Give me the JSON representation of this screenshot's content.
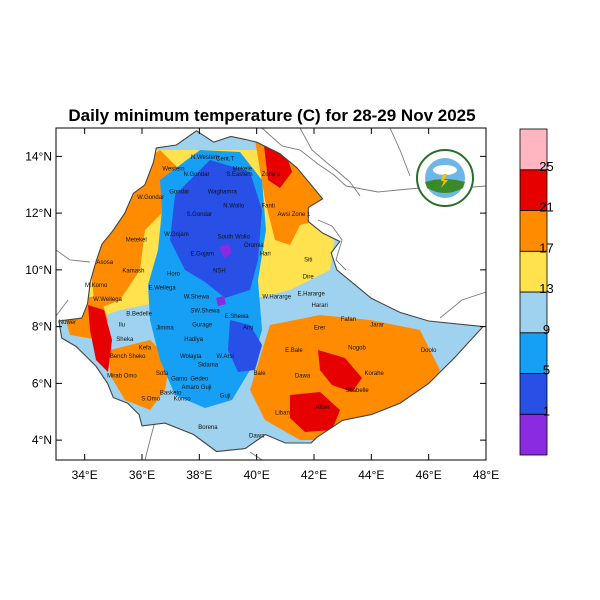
{
  "title": "Daily minimum temperature (C) for 28-29 Nov 2025",
  "map": {
    "lon_range": [
      33,
      48
    ],
    "lat_range": [
      3.3,
      15.0
    ],
    "x_ticks": [
      {
        "v": 34,
        "label": "34°E"
      },
      {
        "v": 36,
        "label": "36°E"
      },
      {
        "v": 38,
        "label": "38°E"
      },
      {
        "v": 40,
        "label": "40°E"
      },
      {
        "v": 42,
        "label": "42°E"
      },
      {
        "v": 44,
        "label": "44°E"
      },
      {
        "v": 46,
        "label": "46°E"
      },
      {
        "v": 48,
        "label": "48°E"
      }
    ],
    "y_ticks": [
      {
        "v": 4,
        "label": "4°N"
      },
      {
        "v": 6,
        "label": "6°N"
      },
      {
        "v": 8,
        "label": "8°N"
      },
      {
        "v": 10,
        "label": "10°N"
      },
      {
        "v": 12,
        "label": "12°N"
      },
      {
        "v": 14,
        "label": "14°N"
      }
    ]
  },
  "colorbar": {
    "colors": [
      "#8a2be2",
      "#2850e6",
      "#16a0f5",
      "#9ed2ee",
      "#ffe24d",
      "#ff8c00",
      "#e60000",
      "#ffb6c1"
    ],
    "labels": [
      "1",
      "5",
      "9",
      "13",
      "17",
      "21",
      "25"
    ]
  },
  "logo": {
    "colors": {
      "ring": "#2a6e2a",
      "sky": "#6fb6e8",
      "cloud": "#ffffff",
      "ground": "#3a8a2a"
    }
  },
  "regions": [
    {
      "name": "N.Western",
      "lon": 38.2,
      "lat": 13.9
    },
    {
      "name": "Cent.T",
      "lon": 38.9,
      "lat": 13.85
    },
    {
      "name": "Mekele",
      "lon": 39.5,
      "lat": 13.5
    },
    {
      "name": "Western",
      "lon": 37.1,
      "lat": 13.5
    },
    {
      "name": "N.Gondar",
      "lon": 37.9,
      "lat": 13.3
    },
    {
      "name": "S.Eastern",
      "lon": 39.4,
      "lat": 13.3
    },
    {
      "name": "Zone 2",
      "lon": 40.5,
      "lat": 13.3
    },
    {
      "name": "Gondar",
      "lon": 37.3,
      "lat": 12.7
    },
    {
      "name": "Waghamra",
      "lon": 38.8,
      "lat": 12.7
    },
    {
      "name": "W.Gondar",
      "lon": 36.3,
      "lat": 12.5
    },
    {
      "name": "N.Wollo",
      "lon": 39.2,
      "lat": 12.2
    },
    {
      "name": "S.Gondar",
      "lon": 38.0,
      "lat": 11.9
    },
    {
      "name": "Fanti",
      "lon": 40.4,
      "lat": 12.2
    },
    {
      "name": "Awsi Zone 1",
      "lon": 41.3,
      "lat": 11.9
    },
    {
      "name": "W.Gojam",
      "lon": 37.2,
      "lat": 11.2
    },
    {
      "name": "Metekel",
      "lon": 35.8,
      "lat": 11.0
    },
    {
      "name": "South Wollo",
      "lon": 39.2,
      "lat": 11.1
    },
    {
      "name": "E.Gojam",
      "lon": 38.1,
      "lat": 10.5
    },
    {
      "name": "Oromia",
      "lon": 39.9,
      "lat": 10.8
    },
    {
      "name": "Hari",
      "lon": 40.3,
      "lat": 10.5
    },
    {
      "name": "Siti",
      "lon": 41.8,
      "lat": 10.3
    },
    {
      "name": "Asosa",
      "lon": 34.7,
      "lat": 10.2
    },
    {
      "name": "Kamash",
      "lon": 35.7,
      "lat": 9.9
    },
    {
      "name": "Horo",
      "lon": 37.1,
      "lat": 9.8
    },
    {
      "name": "NSH",
      "lon": 38.7,
      "lat": 9.9
    },
    {
      "name": "Dire",
      "lon": 41.8,
      "lat": 9.7
    },
    {
      "name": "M.Komo",
      "lon": 34.4,
      "lat": 9.4
    },
    {
      "name": "E.Wellega",
      "lon": 36.7,
      "lat": 9.3
    },
    {
      "name": "W.Shewa",
      "lon": 37.9,
      "lat": 9.0
    },
    {
      "name": "W.Hararge",
      "lon": 40.7,
      "lat": 9.0
    },
    {
      "name": "E.Hararge",
      "lon": 41.9,
      "lat": 9.1
    },
    {
      "name": "W.Wellega",
      "lon": 34.8,
      "lat": 8.9
    },
    {
      "name": "B.Bedelle",
      "lon": 35.9,
      "lat": 8.4
    },
    {
      "name": "SW.Shewa",
      "lon": 38.2,
      "lat": 8.5
    },
    {
      "name": "E.Shewa",
      "lon": 39.3,
      "lat": 8.3
    },
    {
      "name": "Harari",
      "lon": 42.2,
      "lat": 8.7
    },
    {
      "name": "Fafan",
      "lon": 43.2,
      "lat": 8.2
    },
    {
      "name": "Nuwer",
      "lon": 33.4,
      "lat": 8.1
    },
    {
      "name": "Ilu",
      "lon": 35.3,
      "lat": 8.0
    },
    {
      "name": "Jimma",
      "lon": 36.8,
      "lat": 7.9
    },
    {
      "name": "Gurage",
      "lon": 38.1,
      "lat": 8.0
    },
    {
      "name": "Arsi",
      "lon": 39.7,
      "lat": 7.9
    },
    {
      "name": "Erer",
      "lon": 42.2,
      "lat": 7.9
    },
    {
      "name": "Jarar",
      "lon": 44.2,
      "lat": 8.0
    },
    {
      "name": "Sheka",
      "lon": 35.4,
      "lat": 7.5
    },
    {
      "name": "Kefa",
      "lon": 36.1,
      "lat": 7.2
    },
    {
      "name": "Hadiya",
      "lon": 37.8,
      "lat": 7.5
    },
    {
      "name": "E.Bale",
      "lon": 41.3,
      "lat": 7.1
    },
    {
      "name": "Dawa",
      "lon": 41.6,
      "lat": 6.2
    },
    {
      "name": "Bench Sheko",
      "lon": 35.5,
      "lat": 6.9
    },
    {
      "name": "Wolayta",
      "lon": 37.7,
      "lat": 6.9
    },
    {
      "name": "W.Arsi",
      "lon": 38.9,
      "lat": 6.9
    },
    {
      "name": "Nogob",
      "lon": 43.5,
      "lat": 7.2
    },
    {
      "name": "Doolo",
      "lon": 46.0,
      "lat": 7.1
    },
    {
      "name": "Sidama",
      "lon": 38.3,
      "lat": 6.6
    },
    {
      "name": "Bale",
      "lon": 40.1,
      "lat": 6.3
    },
    {
      "name": "Korahe",
      "lon": 44.1,
      "lat": 6.3
    },
    {
      "name": "Mirab Omo",
      "lon": 35.3,
      "lat": 6.2
    },
    {
      "name": "Sofa",
      "lon": 36.7,
      "lat": 6.3
    },
    {
      "name": "Gamo",
      "lon": 37.3,
      "lat": 6.1
    },
    {
      "name": "Gedeo",
      "lon": 38.0,
      "lat": 6.1
    },
    {
      "name": "Amaro Guji",
      "lon": 37.9,
      "lat": 5.8
    },
    {
      "name": "Shabelle",
      "lon": 43.5,
      "lat": 5.7
    },
    {
      "name": "Guji",
      "lon": 38.9,
      "lat": 5.5
    },
    {
      "name": "Basketo",
      "lon": 37.0,
      "lat": 5.6
    },
    {
      "name": "Konso",
      "lon": 37.4,
      "lat": 5.4
    },
    {
      "name": "S.Omo",
      "lon": 36.3,
      "lat": 5.4
    },
    {
      "name": "Liban",
      "lon": 40.9,
      "lat": 4.9
    },
    {
      "name": "Afder",
      "lon": 42.3,
      "lat": 5.1
    },
    {
      "name": "Borena",
      "lon": 38.3,
      "lat": 4.4
    },
    {
      "name": "Dawa",
      "lon": 40.0,
      "lat": 4.1
    }
  ]
}
